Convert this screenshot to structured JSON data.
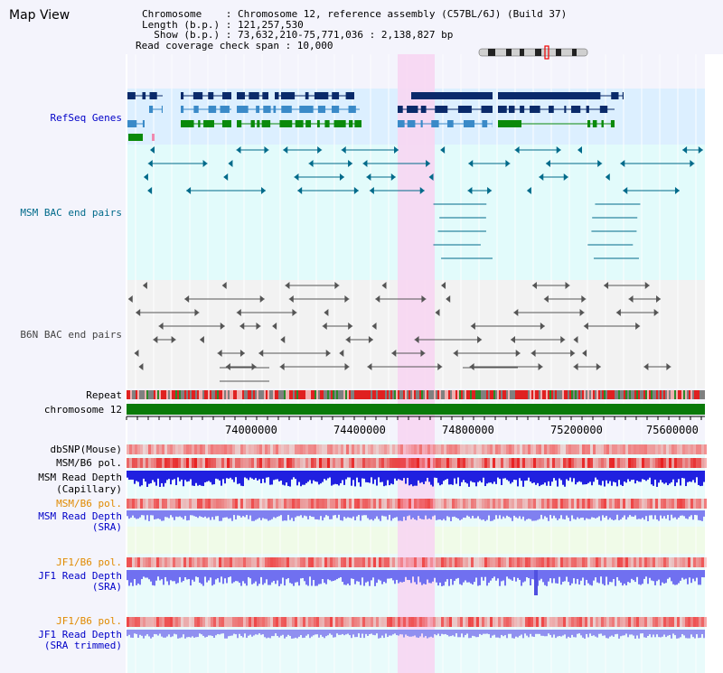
{
  "title": "Map View",
  "header": {
    "chromosome": "Chromosome    : Chromosome 12, reference assembly (C57BL/6J) (Build 37)",
    "length": "Length (b.p.) : 121,257,530",
    "show": "  Show (b.p.) : 73,632,210-75,771,036 : 2,138,827 bp",
    "coverage": "Read coverage check span : 10,000"
  },
  "tracks": {
    "refseq": "RefSeq Genes",
    "msm_bac": "MSM BAC end pairs",
    "b6n_bac": "B6N BAC end pairs",
    "repeat": "Repeat",
    "chromosome": "chromosome 12",
    "dbsnp": "dbSNP(Mouse)",
    "msm_b6_pol": "MSM/B6 pol.",
    "msm_depth_cap_1": "MSM Read Depth",
    "msm_depth_cap_2": "(Capillary)",
    "msm_b6_pol2": "MSM/B6 pol.",
    "msm_depth_sra_1": "MSM Read Depth",
    "msm_depth_sra_2": "(SRA)",
    "jf1_b6_pol": "JF1/B6 pol.",
    "jf1_depth_sra_1": "JF1 Read Depth",
    "jf1_depth_sra_2": "(SRA)",
    "jf1_b6_pol2": "JF1/B6 pol.",
    "jf1_depth_trim_1": "JF1 Read Depth",
    "jf1_depth_trim_2": "(SRA trimmed)"
  },
  "axis": {
    "ticks": [
      "74000000",
      "74400000",
      "74800000",
      "75200000",
      "75600000"
    ]
  },
  "colors": {
    "refseq_dark": "#0a2a6a",
    "refseq_mid": "#3a8ac8",
    "refseq_green": "#0a8a0a",
    "msm_bac": "#006a8a",
    "b6n_bac": "#555555",
    "chromosome": "#0a7a0a",
    "highlight": "#f7d6f2"
  }
}
